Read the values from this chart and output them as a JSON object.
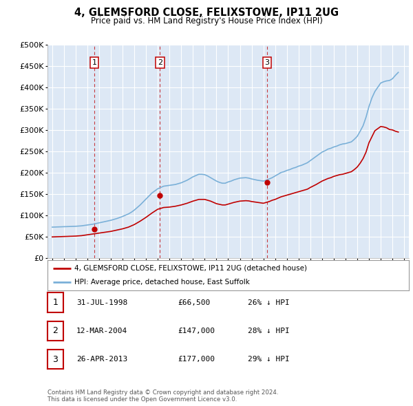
{
  "title": "4, GLEMSFORD CLOSE, FELIXSTOWE, IP11 2UG",
  "subtitle": "Price paid vs. HM Land Registry's House Price Index (HPI)",
  "ylim": [
    0,
    500000
  ],
  "yticks": [
    0,
    50000,
    100000,
    150000,
    200000,
    250000,
    300000,
    350000,
    400000,
    450000,
    500000
  ],
  "background_color": "#ffffff",
  "plot_bg_color": "#dde8f5",
  "grid_color": "#ffffff",
  "transactions": [
    {
      "date_num": 1998.58,
      "price": 66500,
      "label": "1"
    },
    {
      "date_num": 2004.19,
      "price": 147000,
      "label": "2"
    },
    {
      "date_num": 2013.32,
      "price": 177000,
      "label": "3"
    }
  ],
  "hpi_color": "#7ab0d8",
  "price_color": "#c00000",
  "legend_entries": [
    "4, GLEMSFORD CLOSE, FELIXSTOWE, IP11 2UG (detached house)",
    "HPI: Average price, detached house, East Suffolk"
  ],
  "table_data": [
    {
      "num": "1",
      "date": "31-JUL-1998",
      "price": "£66,500",
      "hpi": "26% ↓ HPI"
    },
    {
      "num": "2",
      "date": "12-MAR-2004",
      "price": "£147,000",
      "hpi": "28% ↓ HPI"
    },
    {
      "num": "3",
      "date": "26-APR-2013",
      "price": "£177,000",
      "hpi": "29% ↓ HPI"
    }
  ],
  "footnote": "Contains HM Land Registry data © Crown copyright and database right 2024.\nThis data is licensed under the Open Government Licence v3.0.",
  "hpi_years": [
    1995.0,
    1995.25,
    1995.5,
    1995.75,
    1996.0,
    1996.25,
    1996.5,
    1996.75,
    1997.0,
    1997.25,
    1997.5,
    1997.75,
    1998.0,
    1998.25,
    1998.5,
    1998.75,
    1999.0,
    1999.25,
    1999.5,
    1999.75,
    2000.0,
    2000.25,
    2000.5,
    2000.75,
    2001.0,
    2001.25,
    2001.5,
    2001.75,
    2002.0,
    2002.25,
    2002.5,
    2002.75,
    2003.0,
    2003.25,
    2003.5,
    2003.75,
    2004.0,
    2004.25,
    2004.5,
    2004.75,
    2005.0,
    2005.25,
    2005.5,
    2005.75,
    2006.0,
    2006.25,
    2006.5,
    2006.75,
    2007.0,
    2007.25,
    2007.5,
    2007.75,
    2008.0,
    2008.25,
    2008.5,
    2008.75,
    2009.0,
    2009.25,
    2009.5,
    2009.75,
    2010.0,
    2010.25,
    2010.5,
    2010.75,
    2011.0,
    2011.25,
    2011.5,
    2011.75,
    2012.0,
    2012.25,
    2012.5,
    2012.75,
    2013.0,
    2013.25,
    2013.5,
    2013.75,
    2014.0,
    2014.25,
    2014.5,
    2014.75,
    2015.0,
    2015.25,
    2015.5,
    2015.75,
    2016.0,
    2016.25,
    2016.5,
    2016.75,
    2017.0,
    2017.25,
    2017.5,
    2017.75,
    2018.0,
    2018.25,
    2018.5,
    2018.75,
    2019.0,
    2019.25,
    2019.5,
    2019.75,
    2020.0,
    2020.25,
    2020.5,
    2020.75,
    2021.0,
    2021.25,
    2021.5,
    2021.75,
    2022.0,
    2022.25,
    2022.5,
    2022.75,
    2023.0,
    2023.25,
    2023.5,
    2023.75,
    2024.0,
    2024.25,
    2024.5
  ],
  "hpi_values": [
    72000,
    72200,
    72500,
    72700,
    73000,
    73200,
    73500,
    73800,
    74000,
    74500,
    75000,
    76000,
    77000,
    78000,
    79000,
    80500,
    82000,
    83500,
    85000,
    86500,
    88000,
    90000,
    92000,
    94500,
    97000,
    100000,
    103000,
    107000,
    112000,
    118000,
    124000,
    131000,
    138000,
    145000,
    152000,
    157000,
    162000,
    165000,
    168000,
    169000,
    170000,
    171000,
    172000,
    174000,
    176000,
    179000,
    182000,
    186000,
    190000,
    193000,
    196000,
    196000,
    195000,
    192000,
    188000,
    184000,
    180000,
    177000,
    175000,
    175000,
    178000,
    180000,
    183000,
    185000,
    187000,
    187500,
    188000,
    187000,
    185000,
    183500,
    182000,
    181000,
    180000,
    182000,
    185000,
    188000,
    192000,
    196000,
    200000,
    202000,
    205000,
    207000,
    210000,
    212000,
    215000,
    217000,
    220000,
    223000,
    228000,
    233000,
    238000,
    243000,
    248000,
    251000,
    255000,
    257000,
    260000,
    262000,
    265000,
    267000,
    268000,
    270000,
    272000,
    278000,
    285000,
    297000,
    310000,
    330000,
    355000,
    375000,
    390000,
    400000,
    410000,
    413000,
    415000,
    416000,
    420000,
    428000,
    435000
  ],
  "price_years": [
    1995.0,
    1995.25,
    1995.5,
    1995.75,
    1996.0,
    1996.25,
    1996.5,
    1996.75,
    1997.0,
    1997.25,
    1997.5,
    1997.75,
    1998.0,
    1998.25,
    1998.5,
    1998.75,
    1999.0,
    1999.25,
    1999.5,
    1999.75,
    2000.0,
    2000.25,
    2000.5,
    2000.75,
    2001.0,
    2001.25,
    2001.5,
    2001.75,
    2002.0,
    2002.25,
    2002.5,
    2002.75,
    2003.0,
    2003.25,
    2003.5,
    2003.75,
    2004.0,
    2004.25,
    2004.5,
    2004.75,
    2005.0,
    2005.25,
    2005.5,
    2005.75,
    2006.0,
    2006.25,
    2006.5,
    2006.75,
    2007.0,
    2007.25,
    2007.5,
    2007.75,
    2008.0,
    2008.25,
    2008.5,
    2008.75,
    2009.0,
    2009.25,
    2009.5,
    2009.75,
    2010.0,
    2010.25,
    2010.5,
    2010.75,
    2011.0,
    2011.25,
    2011.5,
    2011.75,
    2012.0,
    2012.25,
    2012.5,
    2012.75,
    2013.0,
    2013.25,
    2013.5,
    2013.75,
    2014.0,
    2014.25,
    2014.5,
    2014.75,
    2015.0,
    2015.25,
    2015.5,
    2015.75,
    2016.0,
    2016.25,
    2016.5,
    2016.75,
    2017.0,
    2017.25,
    2017.5,
    2017.75,
    2018.0,
    2018.25,
    2018.5,
    2018.75,
    2019.0,
    2019.25,
    2019.5,
    2019.75,
    2020.0,
    2020.25,
    2020.5,
    2020.75,
    2021.0,
    2021.25,
    2021.5,
    2021.75,
    2022.0,
    2022.25,
    2022.5,
    2022.75,
    2023.0,
    2023.25,
    2023.5,
    2023.75,
    2024.0,
    2024.25,
    2024.5
  ],
  "price_values": [
    49000,
    49200,
    49500,
    49700,
    50000,
    50200,
    50500,
    50700,
    51000,
    51500,
    52000,
    53000,
    54000,
    55000,
    56000,
    57000,
    58000,
    59000,
    60000,
    61000,
    62000,
    63500,
    65000,
    66500,
    68000,
    70000,
    72000,
    75000,
    78000,
    82000,
    86000,
    90500,
    95000,
    100000,
    105000,
    109500,
    114000,
    116000,
    118000,
    118500,
    119000,
    120000,
    121000,
    122500,
    124000,
    126000,
    128000,
    130500,
    133000,
    135000,
    137000,
    137000,
    137000,
    135000,
    133000,
    130000,
    127000,
    125500,
    124000,
    124000,
    126000,
    128000,
    130000,
    131500,
    133000,
    133500,
    134000,
    133500,
    132000,
    131000,
    130000,
    129000,
    128000,
    130000,
    132000,
    135000,
    137000,
    140000,
    143000,
    145000,
    147000,
    149000,
    151000,
    153000,
    155000,
    157000,
    159000,
    161000,
    165000,
    168500,
    172000,
    176000,
    180000,
    183000,
    186000,
    188000,
    191000,
    193000,
    195000,
    196000,
    198000,
    200000,
    202000,
    207000,
    213000,
    222000,
    233000,
    248000,
    270000,
    284000,
    298000,
    303000,
    308000,
    307000,
    305000,
    301000,
    300000,
    297000,
    295000
  ]
}
